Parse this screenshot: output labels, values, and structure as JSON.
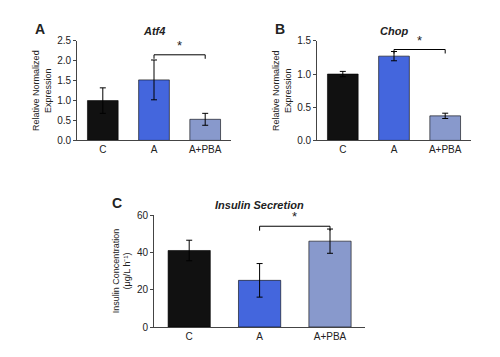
{
  "chart_data": [
    {
      "type": "bar",
      "title": "Atf4",
      "label": "A",
      "categories": [
        "C",
        "A",
        "A+PBA"
      ],
      "values": [
        1.0,
        1.52,
        0.53
      ],
      "errors": [
        0.32,
        0.5,
        0.15
      ],
      "colors": [
        "#111111",
        "#4466dd",
        "#8899cc"
      ],
      "ylabel": "Relative Normalized\nExpression",
      "ylim": [
        0,
        2.5
      ],
      "yticks": [
        {
          "value": 0,
          "label": "0.0"
        },
        0.5,
        {
          "value": 1,
          "label": "1.0"
        },
        1.5,
        {
          "value": 2,
          "label": "2.0"
        },
        2.5
      ],
      "grid": false,
      "annotations": [
        {
          "text": "*",
          "from": "A",
          "to": "A+PBA",
          "y": 2.15
        }
      ]
    },
    {
      "type": "bar",
      "title": "Chop",
      "label": "B",
      "categories": [
        "C",
        "A",
        "A+PBA"
      ],
      "values": [
        1.0,
        1.27,
        0.37
      ],
      "errors": [
        0.04,
        0.07,
        0.04
      ],
      "colors": [
        "#111111",
        "#4466dd",
        "#8899cc"
      ],
      "ylabel": "Relative Normalized\nExpression",
      "ylim": [
        0,
        1.5
      ],
      "yticks": [
        {
          "value": 0,
          "label": "0.0"
        },
        0.5,
        {
          "value": 1,
          "label": "1.0"
        },
        1.5
      ],
      "grid": false,
      "annotations": [
        {
          "text": "*",
          "from": "A",
          "to": "A+PBA",
          "y": 1.37
        }
      ]
    },
    {
      "type": "bar",
      "title": "Insulin Secretion",
      "label": "C",
      "categories": [
        "C",
        "A",
        "A+PBA"
      ],
      "values": [
        41.0,
        25.0,
        46.0
      ],
      "errors": [
        5.5,
        9.0,
        6.5
      ],
      "colors": [
        "#111111",
        "#4466dd",
        "#8899cc"
      ],
      "ylabel": "Insulin Concentration\n(μg/L h⁻¹)",
      "ylim": [
        0,
        60
      ],
      "yticks": [
        0,
        20,
        40,
        60
      ],
      "grid": false,
      "annotations": [
        {
          "text": "*",
          "from": "A",
          "to": "A+PBA",
          "y": 54
        }
      ]
    }
  ]
}
